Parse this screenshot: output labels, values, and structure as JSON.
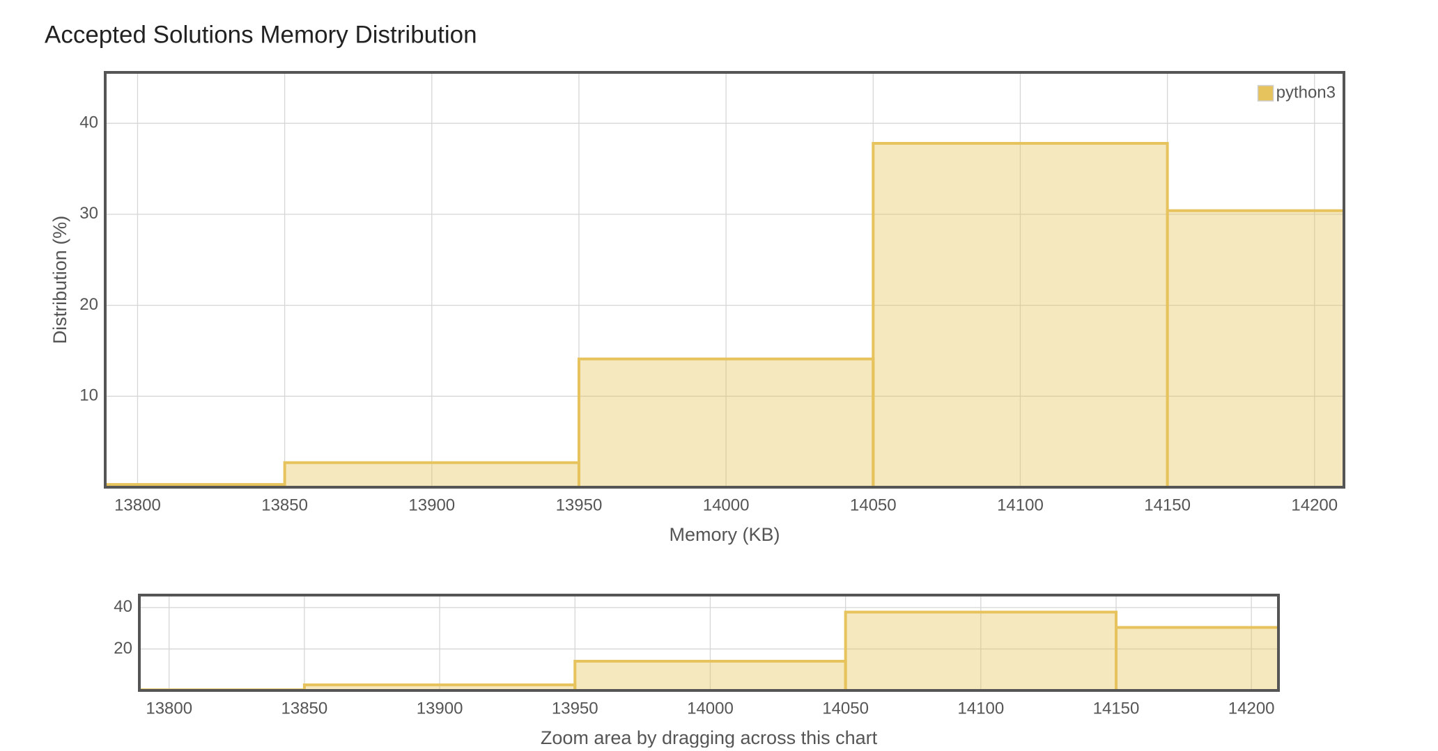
{
  "chart_data": [
    {
      "type": "histogram",
      "title": "Accepted Solutions Memory Distribution",
      "bins": [
        13750,
        13850,
        13950,
        14050,
        14150,
        14250
      ],
      "series": [
        {
          "name": "python3",
          "color": "#e6c35c",
          "values": [
            0.3,
            2.7,
            14.1,
            37.8,
            30.4
          ]
        }
      ],
      "xlim": [
        13789,
        14210
      ],
      "xticks": [
        13800,
        13850,
        13900,
        13950,
        14000,
        14050,
        14100,
        14150,
        14200
      ],
      "ylim": [
        0,
        45.6
      ],
      "yticks": [
        10,
        20,
        30,
        40
      ],
      "xlabel": "Memory (KB)",
      "ylabel": "Distribution (%)",
      "grid": true,
      "legend": "upper right"
    },
    {
      "type": "histogram",
      "bins": [
        13750,
        13850,
        13950,
        14050,
        14150,
        14250
      ],
      "series": [
        {
          "color": "#e6c35c",
          "values": [
            0.3,
            2.7,
            14.1,
            37.8,
            30.4
          ]
        }
      ],
      "xlim": [
        13789,
        14210
      ],
      "xticks": [
        13800,
        13850,
        13900,
        13950,
        14000,
        14050,
        14100,
        14150,
        14200
      ],
      "ylim": [
        0,
        46
      ],
      "yticks": [
        20,
        40
      ],
      "xlabel": "Zoom area by dragging across this chart",
      "grid": true
    }
  ]
}
